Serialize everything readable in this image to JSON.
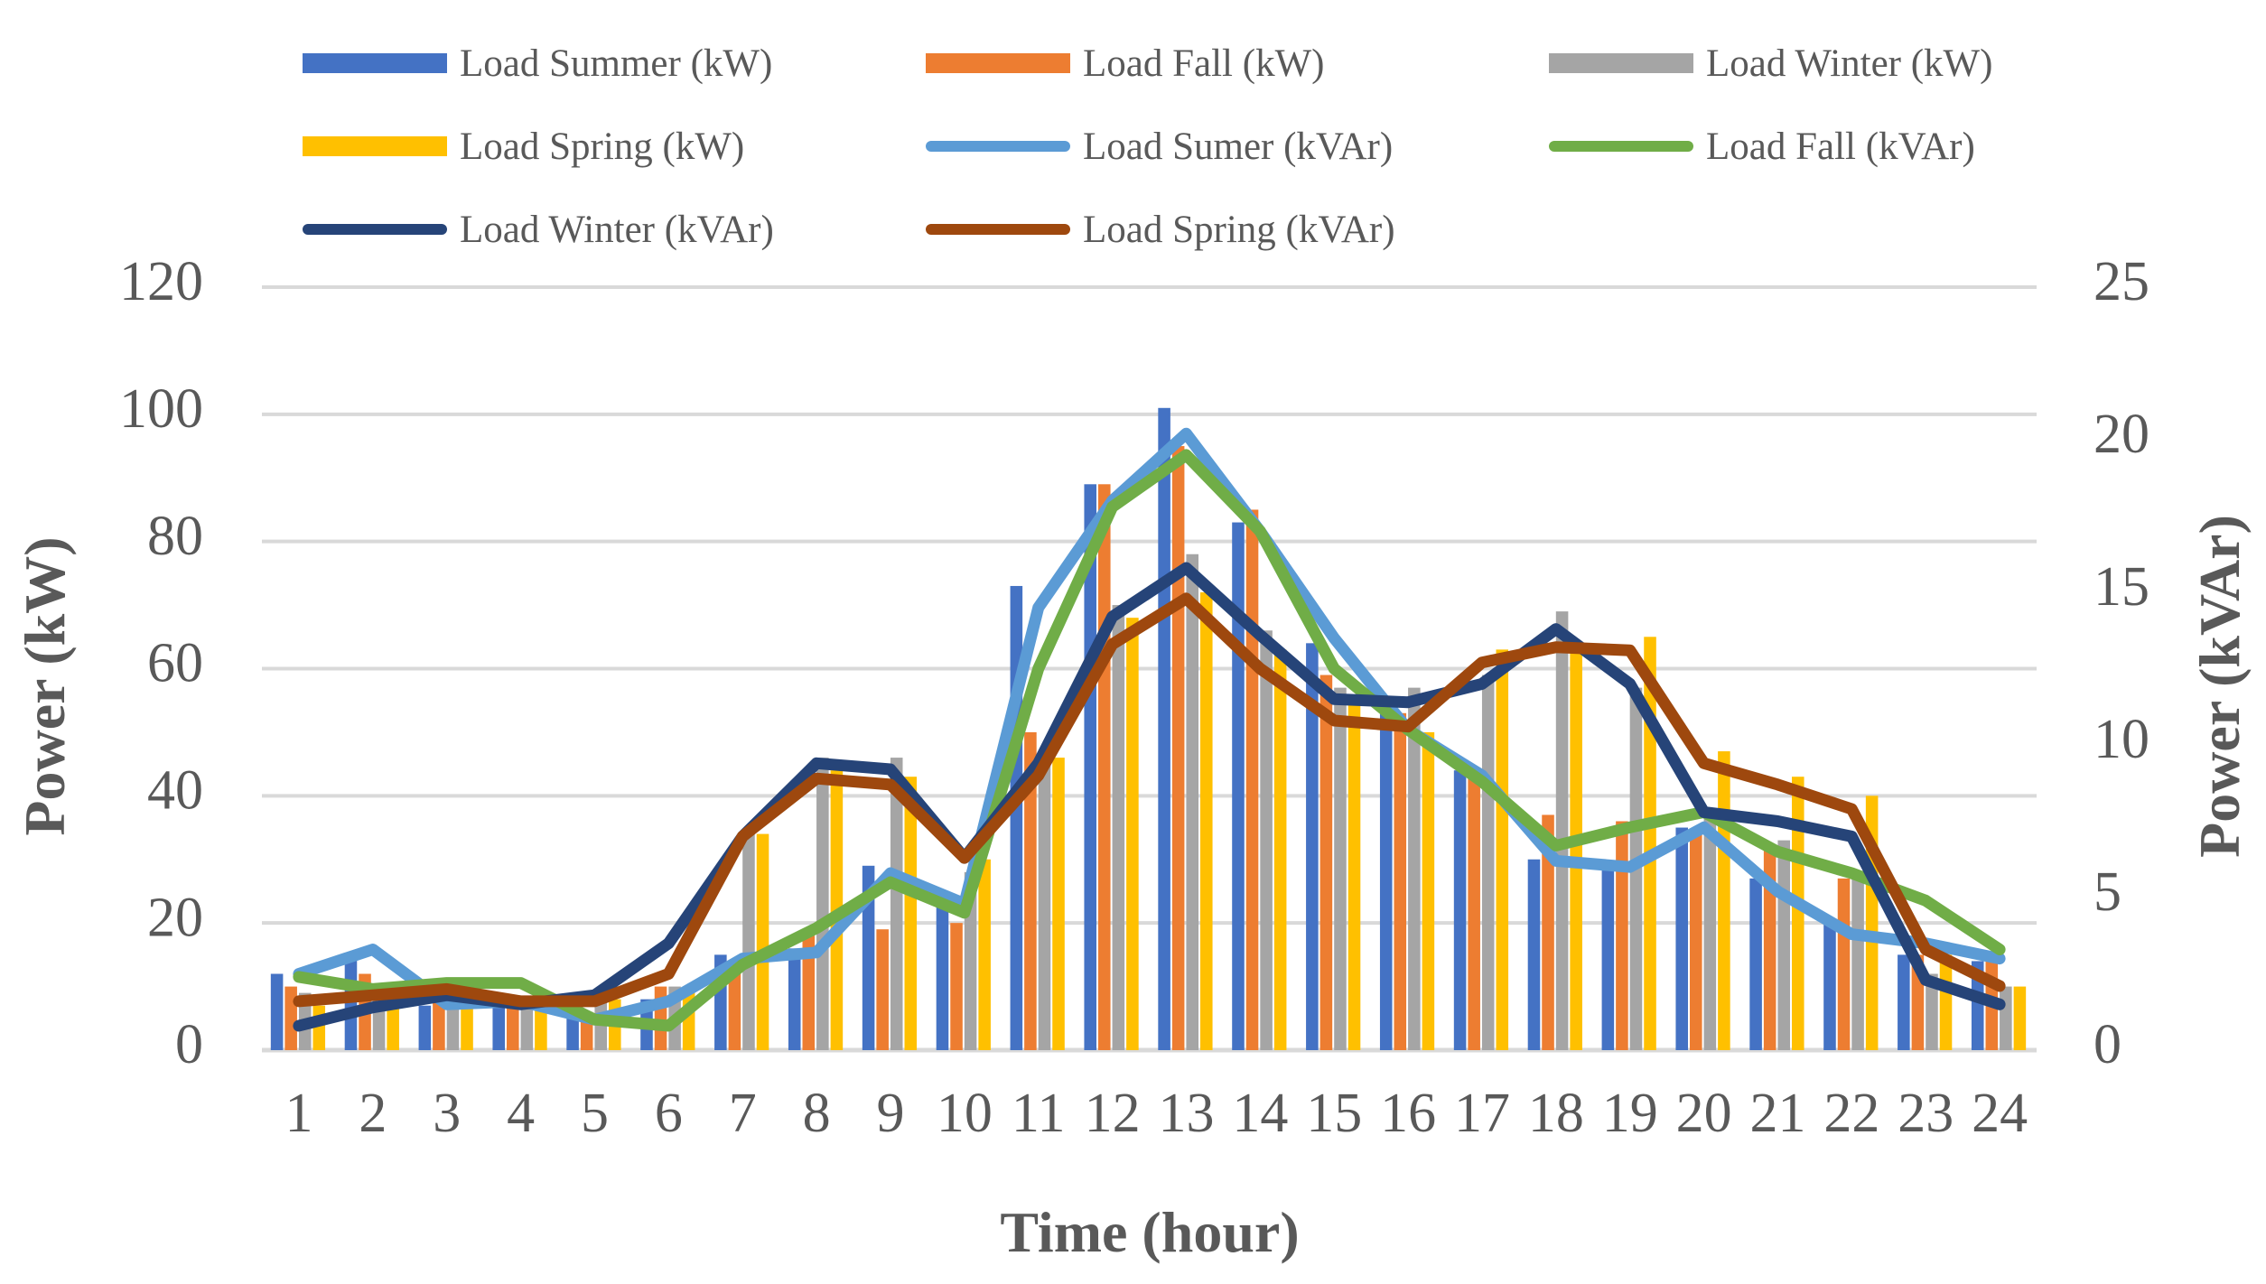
{
  "chart_data": {
    "type": "bar+line",
    "title": "",
    "xlabel": "Time (hour)",
    "ylabel": "Power (kW)",
    "y2label": "Power (kVAr)",
    "ylim": [
      0,
      120
    ],
    "yticks": [
      0,
      20,
      40,
      60,
      80,
      100,
      120
    ],
    "y2lim": [
      0,
      25
    ],
    "y2ticks": [
      0,
      5,
      10,
      15,
      20,
      25
    ],
    "grid": true,
    "legend_position": "top",
    "categories": [
      "1",
      "2",
      "3",
      "4",
      "5",
      "6",
      "7",
      "8",
      "9",
      "10",
      "11",
      "12",
      "13",
      "14",
      "15",
      "16",
      "17",
      "18",
      "19",
      "20",
      "21",
      "22",
      "23",
      "24"
    ],
    "bar_series": [
      {
        "name": "Load Summer (kW)",
        "color": "#4472C4",
        "values": [
          12,
          15,
          7,
          8,
          6,
          8,
          15,
          16,
          29,
          24,
          73,
          89,
          101,
          83,
          64,
          54,
          44,
          30,
          29,
          35,
          27,
          20,
          15,
          14
        ]
      },
      {
        "name": "Load Fall (kW)",
        "color": "#ED7D31",
        "values": [
          10,
          12,
          8,
          7,
          6,
          10,
          14,
          18,
          19,
          20,
          50,
          89,
          95,
          85,
          59,
          53,
          43,
          37,
          36,
          34,
          32,
          27,
          15,
          14
        ]
      },
      {
        "name": "Load Winter (kW)",
        "color": "#A5A5A5",
        "values": [
          9,
          10,
          10,
          8,
          8,
          10,
          34,
          46,
          46,
          28,
          45,
          70,
          78,
          66,
          57,
          57,
          59,
          69,
          57,
          37,
          33,
          28,
          12,
          10
        ]
      },
      {
        "name": "Load Spring (kW)",
        "color": "#FFC000",
        "values": [
          7,
          8,
          9,
          9,
          8,
          10,
          34,
          44,
          43,
          30,
          46,
          68,
          72,
          63,
          55,
          50,
          63,
          64,
          65,
          47,
          43,
          40,
          15,
          10
        ]
      }
    ],
    "line_series": [
      {
        "name": "Load Sumer (kVAr)",
        "color": "#5B9BD5",
        "values": [
          2.5,
          3.3,
          1.5,
          1.6,
          1.0,
          1.6,
          3.0,
          3.2,
          5.8,
          4.8,
          14.5,
          18.0,
          20.2,
          17.0,
          13.5,
          10.5,
          9.0,
          6.2,
          6.0,
          7.3,
          5.2,
          3.8,
          3.5,
          3.0
        ]
      },
      {
        "name": "Load Fall (kVAr)",
        "color": "#70AD47",
        "values": [
          2.4,
          2.0,
          2.2,
          2.2,
          1.0,
          0.8,
          2.8,
          4.0,
          5.5,
          4.5,
          12.5,
          17.8,
          19.5,
          17.0,
          12.5,
          10.5,
          8.8,
          6.7,
          7.3,
          7.8,
          6.5,
          5.8,
          4.9,
          3.3
        ]
      },
      {
        "name": "Load Winter (kVAr)",
        "color": "#264478",
        "values": [
          0.8,
          1.4,
          1.8,
          1.5,
          1.8,
          3.5,
          7.0,
          9.4,
          9.2,
          6.3,
          9.4,
          14.2,
          15.8,
          13.6,
          11.5,
          11.4,
          12.0,
          13.8,
          12.0,
          7.8,
          7.5,
          7.0,
          2.3,
          1.5
        ]
      },
      {
        "name": "Load Spring (kVAr)",
        "color": "#9E480E",
        "values": [
          1.6,
          1.8,
          2.0,
          1.6,
          1.6,
          2.5,
          7.0,
          8.9,
          8.7,
          6.3,
          9.0,
          13.3,
          14.8,
          12.5,
          10.8,
          10.6,
          12.7,
          13.2,
          13.1,
          9.4,
          8.7,
          7.9,
          3.3,
          2.1
        ]
      }
    ]
  }
}
